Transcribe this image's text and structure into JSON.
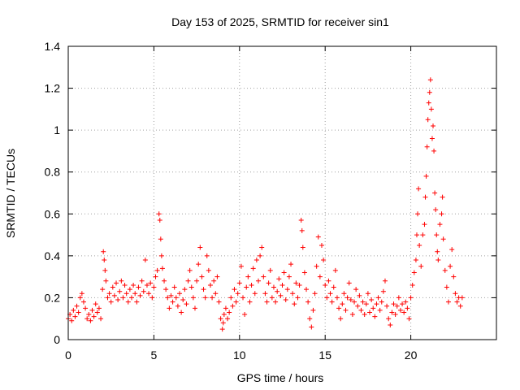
{
  "chart_data": {
    "type": "scatter",
    "title": "Day 153 of 2025, SRMTID for receiver sin1",
    "xlabel": "GPS time / hours",
    "ylabel": "SRMTID / TECUs",
    "xlim": [
      0,
      25
    ],
    "ylim": [
      0,
      1.4
    ],
    "xticks": [
      0,
      5,
      10,
      15,
      20
    ],
    "xtick_labels": [
      "0",
      "5",
      "10",
      "15",
      "20"
    ],
    "yticks": [
      0,
      0.2,
      0.4,
      0.6,
      0.8,
      1.0,
      1.2,
      1.4
    ],
    "ytick_labels": [
      "0",
      "0.2",
      "0.4",
      "0.6",
      "0.8",
      "1",
      "1.2",
      "1.4"
    ],
    "grid": true,
    "marker": "plus",
    "series": [
      {
        "name": "sin1",
        "color": "#ff0000",
        "points": [
          [
            0.0,
            0.1
          ],
          [
            0.1,
            0.12
          ],
          [
            0.2,
            0.09
          ],
          [
            0.3,
            0.14
          ],
          [
            0.4,
            0.11
          ],
          [
            0.5,
            0.16
          ],
          [
            0.6,
            0.13
          ],
          [
            0.7,
            0.2
          ],
          [
            0.8,
            0.22
          ],
          [
            0.9,
            0.18
          ],
          [
            1.0,
            0.15
          ],
          [
            1.1,
            0.1
          ],
          [
            1.2,
            0.12
          ],
          [
            1.3,
            0.09
          ],
          [
            1.4,
            0.14
          ],
          [
            1.5,
            0.11
          ],
          [
            1.6,
            0.17
          ],
          [
            1.7,
            0.13
          ],
          [
            1.8,
            0.15
          ],
          [
            1.9,
            0.1
          ],
          [
            2.0,
            0.24
          ],
          [
            2.05,
            0.42
          ],
          [
            2.1,
            0.38
          ],
          [
            2.15,
            0.33
          ],
          [
            2.2,
            0.28
          ],
          [
            2.3,
            0.2
          ],
          [
            2.4,
            0.22
          ],
          [
            2.5,
            0.18
          ],
          [
            2.6,
            0.25
          ],
          [
            2.7,
            0.21
          ],
          [
            2.8,
            0.27
          ],
          [
            2.9,
            0.19
          ],
          [
            3.0,
            0.23
          ],
          [
            3.1,
            0.28
          ],
          [
            3.2,
            0.2
          ],
          [
            3.3,
            0.26
          ],
          [
            3.4,
            0.22
          ],
          [
            3.5,
            0.18
          ],
          [
            3.6,
            0.24
          ],
          [
            3.7,
            0.2
          ],
          [
            3.8,
            0.26
          ],
          [
            3.9,
            0.22
          ],
          [
            4.0,
            0.18
          ],
          [
            4.1,
            0.25
          ],
          [
            4.2,
            0.21
          ],
          [
            4.3,
            0.28
          ],
          [
            4.4,
            0.23
          ],
          [
            4.5,
            0.38
          ],
          [
            4.6,
            0.26
          ],
          [
            4.7,
            0.22
          ],
          [
            4.8,
            0.27
          ],
          [
            4.9,
            0.2
          ],
          [
            5.0,
            0.25
          ],
          [
            5.1,
            0.3
          ],
          [
            5.2,
            0.33
          ],
          [
            5.3,
            0.6
          ],
          [
            5.35,
            0.57
          ],
          [
            5.4,
            0.48
          ],
          [
            5.45,
            0.4
          ],
          [
            5.5,
            0.34
          ],
          [
            5.6,
            0.28
          ],
          [
            5.7,
            0.24
          ],
          [
            5.8,
            0.2
          ],
          [
            5.9,
            0.15
          ],
          [
            6.0,
            0.21
          ],
          [
            6.1,
            0.18
          ],
          [
            6.2,
            0.25
          ],
          [
            6.3,
            0.2
          ],
          [
            6.4,
            0.16
          ],
          [
            6.5,
            0.22
          ],
          [
            6.6,
            0.13
          ],
          [
            6.7,
            0.19
          ],
          [
            6.8,
            0.24
          ],
          [
            6.9,
            0.17
          ],
          [
            7.0,
            0.28
          ],
          [
            7.1,
            0.33
          ],
          [
            7.2,
            0.25
          ],
          [
            7.3,
            0.2
          ],
          [
            7.4,
            0.15
          ],
          [
            7.5,
            0.28
          ],
          [
            7.6,
            0.36
          ],
          [
            7.7,
            0.44
          ],
          [
            7.8,
            0.3
          ],
          [
            7.9,
            0.24
          ],
          [
            8.0,
            0.2
          ],
          [
            8.1,
            0.4
          ],
          [
            8.2,
            0.33
          ],
          [
            8.3,
            0.26
          ],
          [
            8.4,
            0.2
          ],
          [
            8.5,
            0.28
          ],
          [
            8.6,
            0.22
          ],
          [
            8.7,
            0.3
          ],
          [
            8.8,
            0.18
          ],
          [
            8.9,
            0.1
          ],
          [
            9.0,
            0.05
          ],
          [
            9.05,
            0.08
          ],
          [
            9.1,
            0.12
          ],
          [
            9.2,
            0.15
          ],
          [
            9.3,
            0.1
          ],
          [
            9.4,
            0.13
          ],
          [
            9.5,
            0.2
          ],
          [
            9.6,
            0.16
          ],
          [
            9.7,
            0.24
          ],
          [
            9.8,
            0.18
          ],
          [
            9.9,
            0.22
          ],
          [
            10.0,
            0.27
          ],
          [
            10.1,
            0.35
          ],
          [
            10.2,
            0.2
          ],
          [
            10.3,
            0.12
          ],
          [
            10.4,
            0.25
          ],
          [
            10.5,
            0.3
          ],
          [
            10.6,
            0.18
          ],
          [
            10.7,
            0.26
          ],
          [
            10.8,
            0.34
          ],
          [
            10.9,
            0.22
          ],
          [
            11.0,
            0.38
          ],
          [
            11.1,
            0.28
          ],
          [
            11.2,
            0.4
          ],
          [
            11.3,
            0.44
          ],
          [
            11.4,
            0.3
          ],
          [
            11.5,
            0.22
          ],
          [
            11.6,
            0.18
          ],
          [
            11.7,
            0.27
          ],
          [
            11.8,
            0.33
          ],
          [
            11.9,
            0.2
          ],
          [
            12.0,
            0.25
          ],
          [
            12.1,
            0.18
          ],
          [
            12.2,
            0.23
          ],
          [
            12.3,
            0.29
          ],
          [
            12.4,
            0.21
          ],
          [
            12.5,
            0.26
          ],
          [
            12.6,
            0.32
          ],
          [
            12.7,
            0.19
          ],
          [
            12.8,
            0.24
          ],
          [
            12.9,
            0.3
          ],
          [
            13.0,
            0.36
          ],
          [
            13.1,
            0.22
          ],
          [
            13.2,
            0.17
          ],
          [
            13.3,
            0.27
          ],
          [
            13.4,
            0.2
          ],
          [
            13.5,
            0.26
          ],
          [
            13.6,
            0.57
          ],
          [
            13.65,
            0.52
          ],
          [
            13.7,
            0.44
          ],
          [
            13.8,
            0.32
          ],
          [
            13.9,
            0.24
          ],
          [
            14.0,
            0.18
          ],
          [
            14.1,
            0.1
          ],
          [
            14.2,
            0.06
          ],
          [
            14.3,
            0.14
          ],
          [
            14.4,
            0.22
          ],
          [
            14.5,
            0.35
          ],
          [
            14.6,
            0.49
          ],
          [
            14.7,
            0.3
          ],
          [
            14.8,
            0.45
          ],
          [
            14.9,
            0.38
          ],
          [
            15.0,
            0.26
          ],
          [
            15.1,
            0.2
          ],
          [
            15.2,
            0.28
          ],
          [
            15.3,
            0.22
          ],
          [
            15.4,
            0.18
          ],
          [
            15.5,
            0.25
          ],
          [
            15.6,
            0.33
          ],
          [
            15.7,
            0.2
          ],
          [
            15.8,
            0.15
          ],
          [
            15.9,
            0.1
          ],
          [
            16.0,
            0.17
          ],
          [
            16.1,
            0.22
          ],
          [
            16.2,
            0.14
          ],
          [
            16.3,
            0.2
          ],
          [
            16.4,
            0.27
          ],
          [
            16.5,
            0.19
          ],
          [
            16.6,
            0.12
          ],
          [
            16.7,
            0.18
          ],
          [
            16.8,
            0.24
          ],
          [
            16.9,
            0.16
          ],
          [
            17.0,
            0.21
          ],
          [
            17.1,
            0.14
          ],
          [
            17.2,
            0.18
          ],
          [
            17.3,
            0.12
          ],
          [
            17.4,
            0.17
          ],
          [
            17.5,
            0.22
          ],
          [
            17.6,
            0.13
          ],
          [
            17.7,
            0.19
          ],
          [
            17.8,
            0.15
          ],
          [
            17.9,
            0.11
          ],
          [
            18.0,
            0.17
          ],
          [
            18.1,
            0.2
          ],
          [
            18.2,
            0.14
          ],
          [
            18.3,
            0.18
          ],
          [
            18.4,
            0.23
          ],
          [
            18.5,
            0.28
          ],
          [
            18.6,
            0.16
          ],
          [
            18.7,
            0.1
          ],
          [
            18.8,
            0.07
          ],
          [
            18.9,
            0.13
          ],
          [
            19.0,
            0.17
          ],
          [
            19.1,
            0.12
          ],
          [
            19.2,
            0.16
          ],
          [
            19.3,
            0.2
          ],
          [
            19.4,
            0.14
          ],
          [
            19.5,
            0.17
          ],
          [
            19.6,
            0.13
          ],
          [
            19.7,
            0.18
          ],
          [
            19.8,
            0.15
          ],
          [
            19.9,
            0.1
          ],
          [
            20.0,
            0.2
          ],
          [
            20.1,
            0.26
          ],
          [
            20.2,
            0.32
          ],
          [
            20.3,
            0.38
          ],
          [
            20.35,
            0.5
          ],
          [
            20.4,
            0.6
          ],
          [
            20.45,
            0.72
          ],
          [
            20.5,
            0.45
          ],
          [
            20.6,
            0.35
          ],
          [
            20.7,
            0.5
          ],
          [
            20.8,
            0.55
          ],
          [
            20.85,
            0.68
          ],
          [
            20.9,
            0.78
          ],
          [
            20.95,
            0.92
          ],
          [
            21.0,
            1.05
          ],
          [
            21.05,
            1.13
          ],
          [
            21.1,
            1.18
          ],
          [
            21.15,
            1.24
          ],
          [
            21.2,
            1.1
          ],
          [
            21.25,
            0.96
          ],
          [
            21.3,
            1.02
          ],
          [
            21.35,
            0.9
          ],
          [
            21.4,
            0.7
          ],
          [
            21.45,
            0.62
          ],
          [
            21.5,
            0.5
          ],
          [
            21.55,
            0.42
          ],
          [
            21.6,
            0.38
          ],
          [
            21.7,
            0.55
          ],
          [
            21.8,
            0.6
          ],
          [
            21.85,
            0.68
          ],
          [
            21.9,
            0.48
          ],
          [
            22.0,
            0.33
          ],
          [
            22.1,
            0.25
          ],
          [
            22.2,
            0.18
          ],
          [
            22.3,
            0.35
          ],
          [
            22.4,
            0.43
          ],
          [
            22.5,
            0.3
          ],
          [
            22.6,
            0.22
          ],
          [
            22.7,
            0.18
          ],
          [
            22.8,
            0.2
          ],
          [
            22.9,
            0.16
          ],
          [
            23.0,
            0.2
          ]
        ]
      }
    ]
  }
}
